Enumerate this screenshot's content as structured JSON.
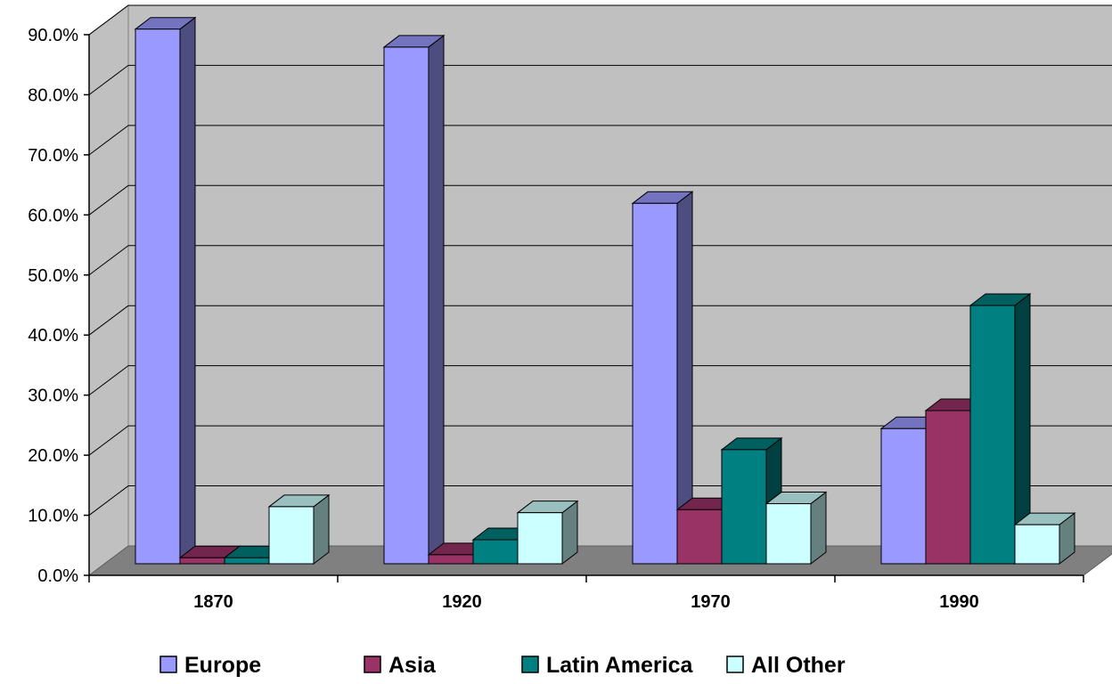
{
  "chart_data": {
    "type": "bar",
    "title": "",
    "xlabel": "",
    "ylabel": "",
    "categories": [
      "1870",
      "1920",
      "1970",
      "1990"
    ],
    "ylim": [
      0,
      90
    ],
    "yticks": [
      0,
      10,
      20,
      30,
      40,
      50,
      60,
      70,
      80,
      90
    ],
    "ytick_labels": [
      "0.0%",
      "10.0%",
      "20.0%",
      "30.0%",
      "40.0%",
      "50.0%",
      "60.0%",
      "70.0%",
      "80.0%",
      "90.0%"
    ],
    "unit": "%",
    "grid": true,
    "style": "3d-clustered-column",
    "legend_position": "bottom",
    "series": [
      {
        "name": "Europe",
        "values": [
          89.0,
          86.0,
          60.0,
          22.5
        ],
        "color": "#9999FF"
      },
      {
        "name": "Asia",
        "values": [
          1.0,
          1.5,
          9.0,
          25.5
        ],
        "color": "#993366"
      },
      {
        "name": "Latin America",
        "values": [
          1.0,
          4.0,
          19.0,
          43.0
        ],
        "color": "#008080"
      },
      {
        "name": "All Other",
        "values": [
          9.5,
          8.5,
          10.0,
          6.5
        ],
        "color": "#CCFFFF"
      }
    ],
    "colors": {
      "wall": "#C0C0C0",
      "floor": "#808080",
      "gridline": "#000000"
    }
  }
}
